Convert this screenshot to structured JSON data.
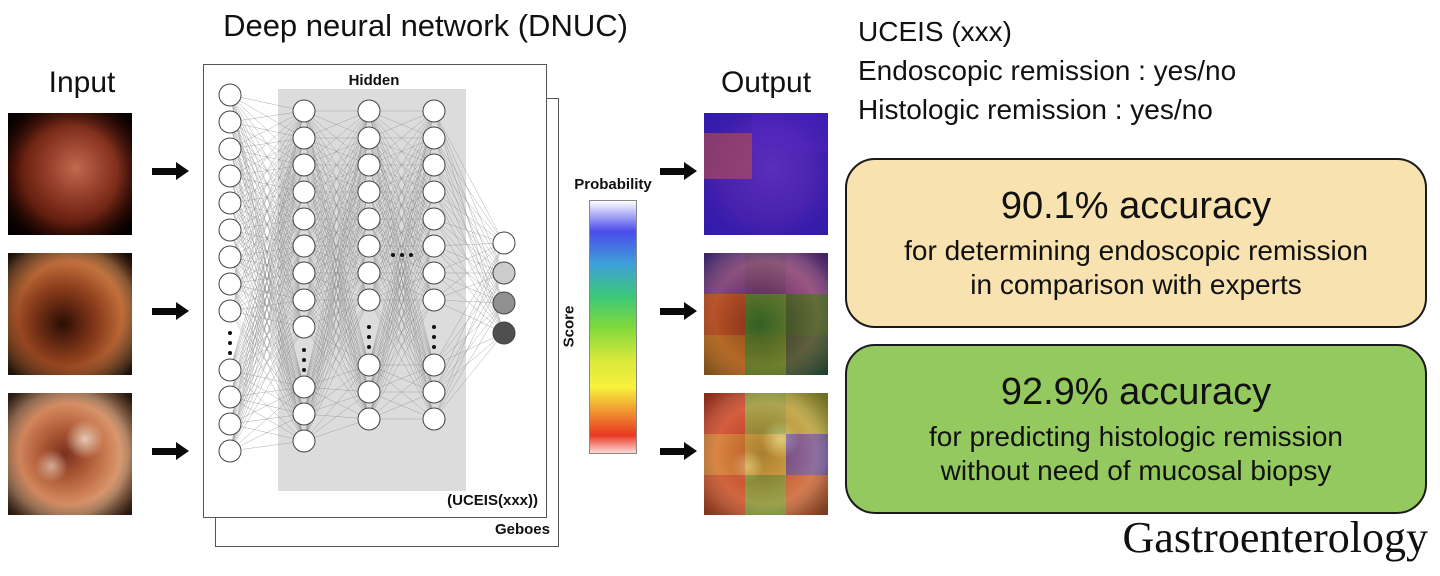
{
  "title": "Deep neural network (DNUC)",
  "input": {
    "label": "Input"
  },
  "output": {
    "label": "Output"
  },
  "network": {
    "hidden_label": "Hidden",
    "uceis_label": "(UCEIS(xxx))",
    "geboes_label": "Geboes"
  },
  "colorbar": {
    "probability_label": "Probability",
    "score_label": "Score",
    "gradient": [
      "#ffffff",
      "#4b4bec",
      "#3cc878",
      "#f8f23c",
      "#e83820",
      "#ffd8d8"
    ]
  },
  "results": {
    "lines": [
      "UCEIS (xxx)",
      "Endoscopic remission : yes/no",
      "Histologic remission : yes/no"
    ]
  },
  "boxes": [
    {
      "accuracy": "90.1% accuracy",
      "line1": "for determining endoscopic remission",
      "line2": "in comparison with experts",
      "bg": "#f7e2b0"
    },
    {
      "accuracy": "92.9% accuracy",
      "line1": "for predicting histologic remission",
      "line2": "without need of mucosal biopsy",
      "bg": "#94c95f"
    }
  ],
  "journal": "Gastroenterology"
}
